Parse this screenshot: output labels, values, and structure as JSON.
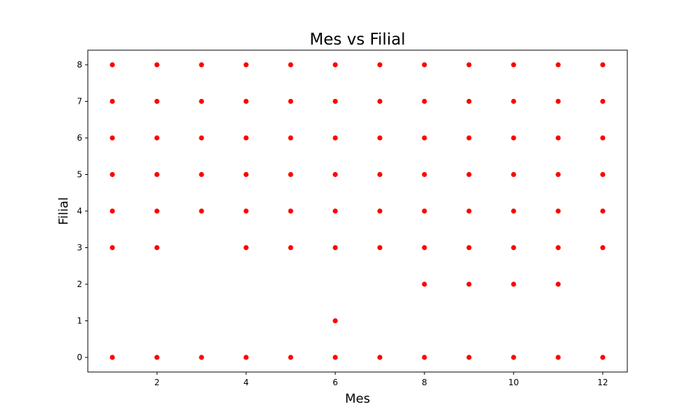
{
  "chart_data": {
    "type": "scatter",
    "title": "Mes vs Filial",
    "xlabel": "Mes",
    "ylabel": "Filial",
    "xlim": [
      0.45,
      12.55
    ],
    "ylim": [
      -0.4,
      8.4
    ],
    "xticks": [
      2,
      4,
      6,
      8,
      10,
      12
    ],
    "yticks": [
      0,
      1,
      2,
      3,
      4,
      5,
      6,
      7,
      8
    ],
    "grid": false,
    "marker_color": "#ff0000",
    "points": [
      {
        "x": 1,
        "y": 0
      },
      {
        "x": 1,
        "y": 3
      },
      {
        "x": 1,
        "y": 4
      },
      {
        "x": 1,
        "y": 5
      },
      {
        "x": 1,
        "y": 6
      },
      {
        "x": 1,
        "y": 7
      },
      {
        "x": 1,
        "y": 8
      },
      {
        "x": 2,
        "y": 0
      },
      {
        "x": 2,
        "y": 3
      },
      {
        "x": 2,
        "y": 4
      },
      {
        "x": 2,
        "y": 5
      },
      {
        "x": 2,
        "y": 6
      },
      {
        "x": 2,
        "y": 7
      },
      {
        "x": 2,
        "y": 8
      },
      {
        "x": 3,
        "y": 0
      },
      {
        "x": 3,
        "y": 4
      },
      {
        "x": 3,
        "y": 5
      },
      {
        "x": 3,
        "y": 6
      },
      {
        "x": 3,
        "y": 7
      },
      {
        "x": 3,
        "y": 8
      },
      {
        "x": 4,
        "y": 0
      },
      {
        "x": 4,
        "y": 3
      },
      {
        "x": 4,
        "y": 4
      },
      {
        "x": 4,
        "y": 5
      },
      {
        "x": 4,
        "y": 6
      },
      {
        "x": 4,
        "y": 7
      },
      {
        "x": 4,
        "y": 8
      },
      {
        "x": 5,
        "y": 0
      },
      {
        "x": 5,
        "y": 3
      },
      {
        "x": 5,
        "y": 4
      },
      {
        "x": 5,
        "y": 5
      },
      {
        "x": 5,
        "y": 6
      },
      {
        "x": 5,
        "y": 7
      },
      {
        "x": 5,
        "y": 8
      },
      {
        "x": 6,
        "y": 0
      },
      {
        "x": 6,
        "y": 1
      },
      {
        "x": 6,
        "y": 3
      },
      {
        "x": 6,
        "y": 4
      },
      {
        "x": 6,
        "y": 5
      },
      {
        "x": 6,
        "y": 6
      },
      {
        "x": 6,
        "y": 7
      },
      {
        "x": 6,
        "y": 8
      },
      {
        "x": 7,
        "y": 0
      },
      {
        "x": 7,
        "y": 3
      },
      {
        "x": 7,
        "y": 4
      },
      {
        "x": 7,
        "y": 5
      },
      {
        "x": 7,
        "y": 6
      },
      {
        "x": 7,
        "y": 7
      },
      {
        "x": 7,
        "y": 8
      },
      {
        "x": 8,
        "y": 0
      },
      {
        "x": 8,
        "y": 2
      },
      {
        "x": 8,
        "y": 3
      },
      {
        "x": 8,
        "y": 4
      },
      {
        "x": 8,
        "y": 5
      },
      {
        "x": 8,
        "y": 6
      },
      {
        "x": 8,
        "y": 7
      },
      {
        "x": 8,
        "y": 8
      },
      {
        "x": 9,
        "y": 0
      },
      {
        "x": 9,
        "y": 2
      },
      {
        "x": 9,
        "y": 3
      },
      {
        "x": 9,
        "y": 4
      },
      {
        "x": 9,
        "y": 5
      },
      {
        "x": 9,
        "y": 6
      },
      {
        "x": 9,
        "y": 7
      },
      {
        "x": 9,
        "y": 8
      },
      {
        "x": 10,
        "y": 0
      },
      {
        "x": 10,
        "y": 2
      },
      {
        "x": 10,
        "y": 3
      },
      {
        "x": 10,
        "y": 4
      },
      {
        "x": 10,
        "y": 5
      },
      {
        "x": 10,
        "y": 6
      },
      {
        "x": 10,
        "y": 7
      },
      {
        "x": 10,
        "y": 8
      },
      {
        "x": 11,
        "y": 0
      },
      {
        "x": 11,
        "y": 2
      },
      {
        "x": 11,
        "y": 3
      },
      {
        "x": 11,
        "y": 4
      },
      {
        "x": 11,
        "y": 5
      },
      {
        "x": 11,
        "y": 6
      },
      {
        "x": 11,
        "y": 7
      },
      {
        "x": 11,
        "y": 8
      },
      {
        "x": 12,
        "y": 0
      },
      {
        "x": 12,
        "y": 3
      },
      {
        "x": 12,
        "y": 4
      },
      {
        "x": 12,
        "y": 5
      },
      {
        "x": 12,
        "y": 6
      },
      {
        "x": 12,
        "y": 7
      },
      {
        "x": 12,
        "y": 8
      }
    ]
  }
}
